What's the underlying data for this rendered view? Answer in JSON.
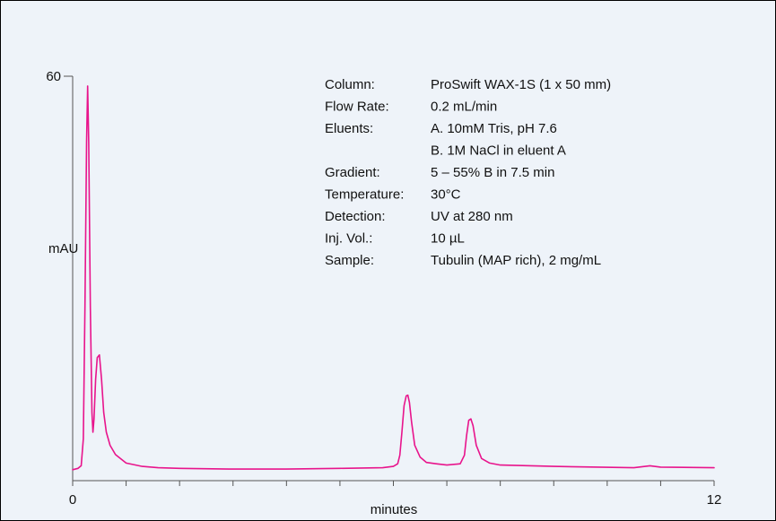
{
  "chart_data": {
    "type": "line",
    "xlabel": "minutes",
    "ylabel": "mAU",
    "xlim": [
      0,
      12
    ],
    "ylim": [
      0,
      60
    ],
    "x_tick_labels": [
      "0",
      "12"
    ],
    "y_tick_labels": [
      "60"
    ],
    "series_color": "#e8148c",
    "peaks": [
      {
        "x": 0.28,
        "y": 58.5
      },
      {
        "x": 0.5,
        "y": 17.7
      },
      {
        "x": 6.27,
        "y": 11.6
      },
      {
        "x": 7.45,
        "y": 8.0
      }
    ],
    "series": [
      {
        "x": [
          0.0,
          0.1,
          0.16,
          0.2,
          0.23,
          0.26,
          0.28,
          0.3,
          0.33,
          0.36,
          0.38,
          0.4,
          0.43,
          0.46,
          0.5,
          0.54,
          0.58,
          0.63,
          0.7,
          0.8,
          1.0,
          1.3,
          1.6,
          2.0,
          3.0,
          4.0,
          5.0,
          5.8,
          6.0,
          6.08,
          6.12,
          6.16,
          6.2,
          6.24,
          6.27,
          6.3,
          6.34,
          6.4,
          6.5,
          6.62,
          6.8,
          7.0,
          7.25,
          7.33,
          7.37,
          7.41,
          7.45,
          7.49,
          7.55,
          7.65,
          7.8,
          8.0,
          9.0,
          10.5,
          10.8,
          11.0,
          12.0
        ],
        "values": [
          0.3,
          0.5,
          0.9,
          5.0,
          25.0,
          50.0,
          58.5,
          50.0,
          25.0,
          9.0,
          6.0,
          8.0,
          14.0,
          17.3,
          17.7,
          14.0,
          9.0,
          6.0,
          4.0,
          2.6,
          1.3,
          0.8,
          0.6,
          0.5,
          0.4,
          0.4,
          0.5,
          0.6,
          0.8,
          1.2,
          2.5,
          6.0,
          10.0,
          11.5,
          11.6,
          10.5,
          7.5,
          4.0,
          2.2,
          1.4,
          1.2,
          1.0,
          1.2,
          2.5,
          5.5,
          7.8,
          8.0,
          7.0,
          4.0,
          2.0,
          1.3,
          1.0,
          0.8,
          0.6,
          0.9,
          0.7,
          0.6
        ]
      }
    ]
  },
  "conditions": [
    {
      "label": "Column:",
      "value": "ProSwift WAX-1S (1 x 50 mm)"
    },
    {
      "label": "Flow Rate:",
      "value": "0.2 mL/min"
    },
    {
      "label": "Eluents:",
      "value": "A.  10mM Tris, pH 7.6"
    },
    {
      "label": "",
      "value": "B.  1M NaCl in eluent A"
    },
    {
      "label": "Gradient:",
      "value": "5 – 55% B in 7.5 min"
    },
    {
      "label": "Temperature:",
      "value": "30°C"
    },
    {
      "label": "Detection:",
      "value": "UV at 280 nm"
    },
    {
      "label": "Inj. Vol.:",
      "value": "10 µL"
    },
    {
      "label": "Sample:",
      "value": "Tubulin (MAP rich), 2 mg/mL"
    }
  ]
}
